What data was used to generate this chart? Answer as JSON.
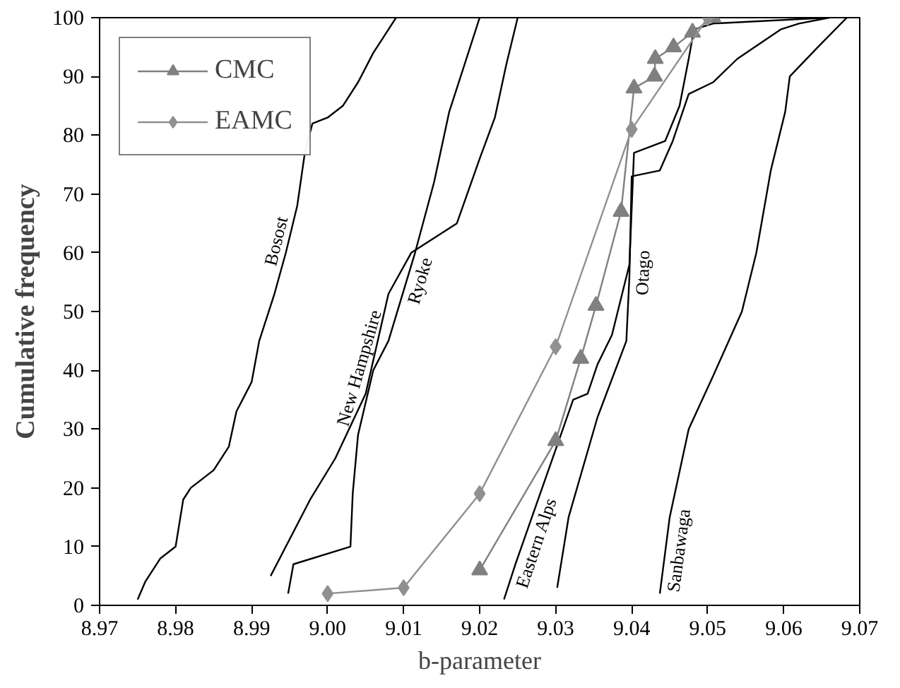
{
  "chart_data": {
    "type": "line",
    "xlabel": "b-parameter",
    "ylabel": "Cumulative frequency",
    "xlim": [
      8.97,
      9.07
    ],
    "ylim": [
      0,
      100
    ],
    "xticks": [
      {
        "value": 8.97,
        "label": "8.97"
      },
      {
        "value": 8.98,
        "label": "8.98"
      },
      {
        "value": 8.99,
        "label": "8.99"
      },
      {
        "value": 9.0,
        "label": "9.00"
      },
      {
        "value": 9.01,
        "label": "9.01"
      },
      {
        "value": 9.02,
        "label": "9.02"
      },
      {
        "value": 9.03,
        "label": "9.03"
      },
      {
        "value": 9.04,
        "label": "9.04"
      },
      {
        "value": 9.05,
        "label": "9.05"
      },
      {
        "value": 9.06,
        "label": "9.06"
      },
      {
        "value": 9.07,
        "label": "9.07"
      }
    ],
    "yticks": [
      0,
      10,
      20,
      30,
      40,
      50,
      60,
      70,
      80,
      90,
      100
    ],
    "grid": false,
    "legend": "top left",
    "line_style": "solid",
    "series": [
      {
        "name": "Bosost",
        "color": "#000000",
        "marker": "none",
        "x": [
          8.975,
          8.976,
          8.978,
          8.98,
          8.981,
          8.982,
          8.985,
          8.987,
          8.988,
          8.99,
          8.991,
          8.993,
          8.9945,
          8.996,
          8.997,
          8.998,
          9.0,
          9.002,
          9.004,
          9.006,
          9.007,
          9.009
        ],
        "values": [
          1,
          4,
          8,
          10,
          18,
          20,
          23,
          27,
          33,
          38,
          45,
          53,
          60,
          68,
          77,
          82,
          83,
          85,
          89,
          94,
          96,
          100
        ]
      },
      {
        "name": "New Hampshire",
        "color": "#000000",
        "marker": "none",
        "x": [
          8.9925,
          8.9977,
          9.001,
          9.005,
          9.008,
          9.011,
          9.017,
          9.02,
          9.022,
          9.0235,
          9.025
        ],
        "values": [
          5,
          18,
          25,
          36,
          53,
          60,
          65,
          76,
          83,
          92,
          100
        ]
      },
      {
        "name": "Ryoke",
        "color": "#000000",
        "marker": "none",
        "x": [
          8.9948,
          8.9955,
          9.003,
          9.0033,
          9.004,
          9.006,
          9.008,
          9.0115,
          9.014,
          9.016,
          9.018,
          9.02
        ],
        "values": [
          2,
          7,
          10,
          19,
          29,
          40,
          45,
          60,
          72,
          84,
          92,
          100
        ]
      },
      {
        "name": "Eastern Alps",
        "color": "#000000",
        "marker": "none",
        "x": [
          9.0232,
          9.0247,
          9.0304,
          9.0323,
          9.0342,
          9.0355,
          9.0374,
          9.0397,
          9.0403,
          9.0444,
          9.0463,
          9.0475,
          9.0482,
          9.0507,
          9.0658
        ],
        "values": [
          1,
          7,
          28,
          35,
          36,
          41,
          46,
          58,
          77,
          79,
          85,
          93,
          98,
          99,
          100
        ]
      },
      {
        "name": "Otago",
        "color": "#000000",
        "marker": "none",
        "x": [
          9.0302,
          9.0317,
          9.0355,
          9.0393,
          9.0397,
          9.04,
          9.0437,
          9.0454,
          9.0475,
          9.0507,
          9.0539,
          9.0596,
          9.062,
          9.066
        ],
        "values": [
          3,
          15,
          32,
          45,
          56,
          73,
          74,
          79,
          87,
          89,
          93,
          98,
          99,
          100
        ]
      },
      {
        "name": "Sanbawaga",
        "color": "#000000",
        "marker": "none",
        "x": [
          9.0437,
          9.045,
          9.0475,
          9.0507,
          9.0545,
          9.0564,
          9.0583,
          9.0602,
          9.0608,
          9.0645,
          9.0683
        ],
        "values": [
          2,
          15,
          30,
          39,
          50,
          60,
          74,
          84,
          90,
          95,
          100
        ]
      },
      {
        "name": "CMC",
        "color": "#808080",
        "marker": "triangle",
        "x": [
          9.02,
          9.03,
          9.0333,
          9.0353,
          9.0386,
          9.0403,
          9.043,
          9.0431,
          9.0455,
          9.048,
          9.0507
        ],
        "values": [
          6,
          28,
          42,
          51,
          67,
          88,
          90,
          93,
          95,
          97.5,
          100
        ]
      },
      {
        "name": "EAMC",
        "color": "#909090",
        "marker": "diamond",
        "x": [
          9.0,
          9.01,
          9.02,
          9.03,
          9.04,
          9.05
        ],
        "values": [
          2,
          3,
          19,
          44,
          81,
          100
        ]
      }
    ]
  }
}
